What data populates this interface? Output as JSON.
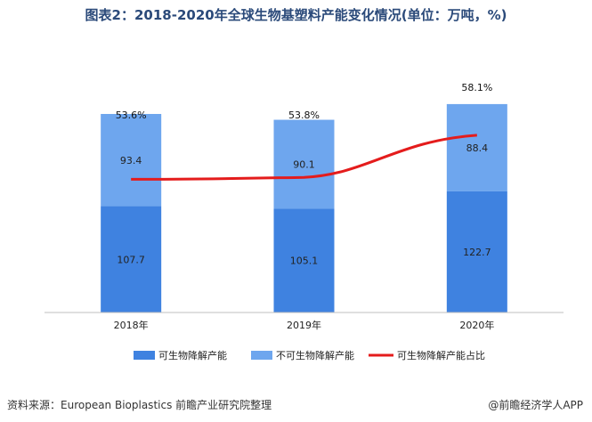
{
  "title": "图表2：2018-2020年全球生物基塑料产能变化情况(单位：万吨，%)",
  "footer": {
    "source": "资料来源：European Bioplastics 前瞻产业研究院整理",
    "brand": "@前瞻经济学人APP"
  },
  "colors": {
    "biodegradable": "#3f82e0",
    "non_biodegradable": "#6ea6ee",
    "share_line": "#e41c1c"
  },
  "chart_data": {
    "type": "bar",
    "stacked": true,
    "categories": [
      "2018年",
      "2019年",
      "2020年"
    ],
    "series": [
      {
        "name": "可生物降解产能",
        "values": [
          107.7,
          105.1,
          122.7
        ],
        "labels": [
          "107.7",
          "105.1",
          "122.7"
        ]
      },
      {
        "name": "不可生物降解产能",
        "values": [
          93.4,
          90.1,
          88.4
        ],
        "labels": [
          "93.4",
          "90.1",
          "88.4"
        ]
      }
    ],
    "line_series": {
      "name": "可生物降解产能占比",
      "values": [
        53.6,
        53.8,
        58.1
      ],
      "labels": [
        "53.6%",
        "53.8%",
        "58.1%"
      ]
    },
    "ylim": [
      0,
      240
    ],
    "legend": "bottom",
    "grid": false
  }
}
